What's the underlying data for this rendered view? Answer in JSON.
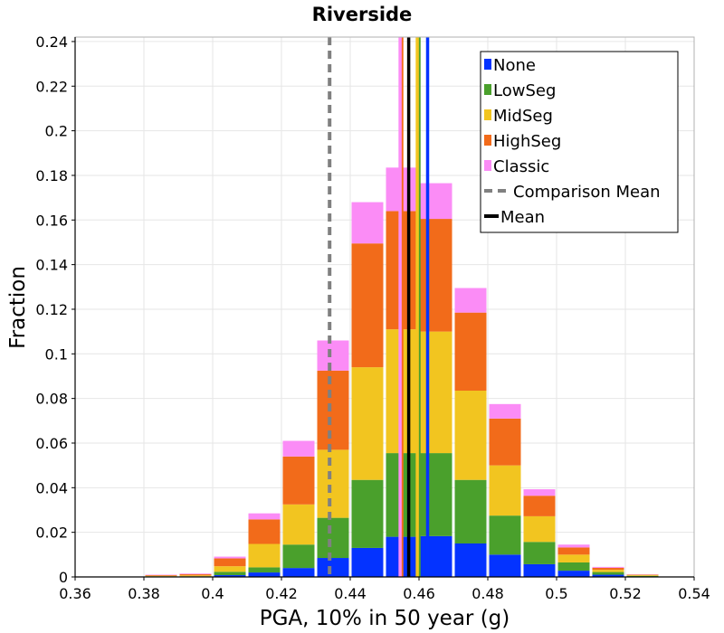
{
  "chart_data": {
    "type": "bar",
    "stacked": true,
    "title": "Riverside",
    "xlabel": "PGA, 10% in 50 year (g)",
    "ylabel": "Fraction",
    "xlim": [
      0.36,
      0.54
    ],
    "ylim": [
      0,
      0.242
    ],
    "x_ticks": [
      0.36,
      0.38,
      0.4,
      0.42,
      0.44,
      0.46,
      0.48,
      0.5,
      0.52,
      0.54
    ],
    "x_tick_labels": [
      "0.36",
      "0.38",
      "0.4",
      "0.42",
      "0.44",
      "0.46",
      "0.48",
      "0.5",
      "0.52",
      "0.54"
    ],
    "y_ticks": [
      0,
      0.02,
      0.04,
      0.06,
      0.08,
      0.1,
      0.12,
      0.14,
      0.16,
      0.18,
      0.2,
      0.22,
      0.24
    ],
    "y_tick_labels": [
      "0",
      "0.02",
      "0.04",
      "0.06",
      "0.08",
      "0.1",
      "0.12",
      "0.14",
      "0.16",
      "0.18",
      "0.2",
      "0.22",
      "0.24"
    ],
    "grid": true,
    "bin_width": 0.01,
    "bin_centers": [
      0.365,
      0.375,
      0.385,
      0.395,
      0.405,
      0.415,
      0.425,
      0.435,
      0.445,
      0.455,
      0.465,
      0.475,
      0.485,
      0.495,
      0.505,
      0.515,
      0.525,
      0.535
    ],
    "series": [
      {
        "name": "None",
        "color": "#0433ff",
        "values": [
          0,
          0,
          0,
          0,
          0.0008,
          0.002,
          0.004,
          0.0085,
          0.013,
          0.018,
          0.0183,
          0.015,
          0.01,
          0.0057,
          0.0028,
          0.001,
          0.0002,
          0
        ]
      },
      {
        "name": "LowSeg",
        "color": "#4aa02c",
        "values": [
          0,
          0,
          0.0003,
          0.0003,
          0.0015,
          0.0023,
          0.0105,
          0.018,
          0.0305,
          0.0375,
          0.0372,
          0.0285,
          0.0175,
          0.01,
          0.0037,
          0.0012,
          0.0003,
          0
        ]
      },
      {
        "name": "MidSeg",
        "color": "#f2c520",
        "values": [
          0,
          0,
          0.0002,
          0.0004,
          0.0025,
          0.0105,
          0.018,
          0.0305,
          0.0505,
          0.0555,
          0.0545,
          0.04,
          0.0225,
          0.0115,
          0.0035,
          0.001,
          0.0003,
          0
        ]
      },
      {
        "name": "HighSeg",
        "color": "#f26b1a",
        "values": [
          0,
          0,
          0.0003,
          0.0005,
          0.0035,
          0.011,
          0.0215,
          0.0355,
          0.0555,
          0.053,
          0.0505,
          0.035,
          0.021,
          0.0092,
          0.0032,
          0.0009,
          0.0002,
          0
        ]
      },
      {
        "name": "Classic",
        "color": "#fb8cf6",
        "values": [
          0,
          0,
          0.0002,
          0.0003,
          0.0008,
          0.0027,
          0.007,
          0.0135,
          0.0185,
          0.0195,
          0.016,
          0.011,
          0.0065,
          0.0029,
          0.0013,
          0.0004,
          0.0001,
          0
        ]
      }
    ],
    "vertical_lines": [
      {
        "name": "Comparison Mean",
        "x": 0.434,
        "color": "#808080",
        "style": "dashed",
        "in_legend": true
      },
      {
        "name": "Mean",
        "x": 0.457,
        "color": "#000000",
        "style": "solid",
        "in_legend": true
      },
      {
        "name": "None",
        "x": 0.4625,
        "color": "#0433ff",
        "style": "solid",
        "in_legend": false
      },
      {
        "name": "LowSeg",
        "x": 0.46,
        "color": "#4aa02c",
        "style": "solid",
        "in_legend": false
      },
      {
        "name": "MidSeg",
        "x": 0.4595,
        "color": "#f2c520",
        "style": "solid",
        "in_legend": false
      },
      {
        "name": "HighSeg",
        "x": 0.455,
        "color": "#f26b1a",
        "style": "solid",
        "in_legend": false
      },
      {
        "name": "Classic",
        "x": 0.4545,
        "color": "#fb8cf6",
        "style": "solid",
        "in_legend": false
      }
    ],
    "legend": {
      "placement": "top-right",
      "entries": [
        {
          "label": "None",
          "color": "#0433ff",
          "kind": "box"
        },
        {
          "label": "LowSeg",
          "color": "#4aa02c",
          "kind": "box"
        },
        {
          "label": "MidSeg",
          "color": "#f2c520",
          "kind": "box"
        },
        {
          "label": "HighSeg",
          "color": "#f26b1a",
          "kind": "box"
        },
        {
          "label": "Classic",
          "color": "#fb8cf6",
          "kind": "box"
        },
        {
          "label": "Comparison Mean",
          "color": "#808080",
          "kind": "dashed-line"
        },
        {
          "label": "Mean",
          "color": "#000000",
          "kind": "line"
        }
      ]
    }
  }
}
